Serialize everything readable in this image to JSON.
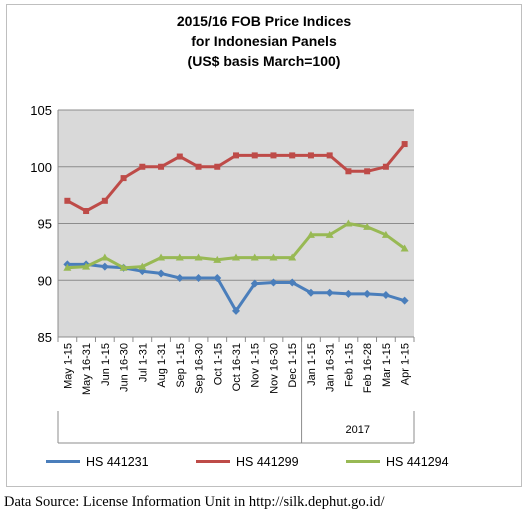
{
  "chart_data": {
    "type": "line",
    "title_lines": [
      "2015/16 FOB Price Indices",
      "for Indonesian Panels",
      "(US$ basis March=100)"
    ],
    "xlabel": "",
    "ylabel": "",
    "ylim": [
      85,
      105
    ],
    "yticks": [
      "85",
      "90",
      "95",
      "100",
      "105"
    ],
    "grid": true,
    "legend_position": "bottom",
    "categories": [
      "May 1-15",
      "May 16-31",
      "Jun 1-15",
      "Jun 16-30",
      "Jul 1-31",
      "Aug 1-31",
      "Sep 1-15",
      "Sep 16-30",
      "Oct 1-15",
      "Oct 16-31",
      "Nov 1-15",
      "Nov 16-30",
      "Dec 1-15",
      "Jan 1-15",
      "Jan 16-31",
      "Feb 1-15",
      "Feb 16-28",
      "Mar 1-15",
      "Apr 1-15"
    ],
    "year_group_label": "2017",
    "series": [
      {
        "name": "HS 441231",
        "color": "#4a7ebb",
        "marker": "diamond",
        "values": [
          91.4,
          91.4,
          91.2,
          91.1,
          90.8,
          90.6,
          90.2,
          90.2,
          90.2,
          87.3,
          89.7,
          89.8,
          89.8,
          88.9,
          88.9,
          88.8,
          88.8,
          88.7,
          88.2
        ]
      },
      {
        "name": "HS 441299",
        "color": "#be4b48",
        "marker": "square",
        "values": [
          97.0,
          96.1,
          97.0,
          99.0,
          100.0,
          100.0,
          100.9,
          100.0,
          100.0,
          101.0,
          101.0,
          101.0,
          101.0,
          101.0,
          101.0,
          99.6,
          99.6,
          100.0,
          102.0
        ]
      },
      {
        "name": "HS 441294",
        "color": "#98b954",
        "marker": "triangle",
        "values": [
          91.1,
          91.2,
          92.0,
          91.1,
          91.2,
          92.0,
          92.0,
          92.0,
          91.8,
          92.0,
          92.0,
          92.0,
          92.0,
          94.0,
          94.0,
          95.0,
          94.7,
          94.0,
          92.8
        ]
      }
    ]
  },
  "source_text": "Data Source: License Information Unit in http://silk.dephut.go.id/"
}
